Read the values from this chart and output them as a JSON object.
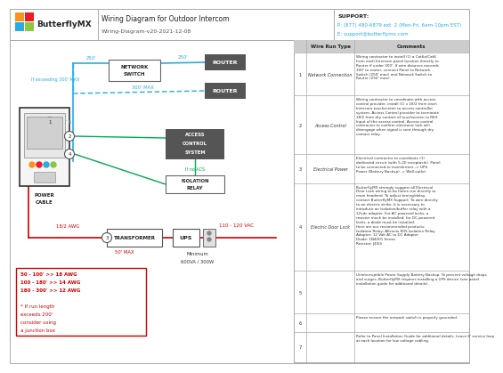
{
  "title": "Wiring Diagram for Outdoor Intercom",
  "subtitle": "Wiring-Diagram-v20-2021-12-08",
  "company": "ButterflyMX",
  "support_phone": "P: (877) 480-6879 ext. 2 (Mon-Fri, 6am-10pm EST)",
  "support_email": "E: support@butterflymx.com",
  "bg_color": "#ffffff",
  "cyan": "#29abe2",
  "green": "#00a651",
  "red": "#cc0000",
  "dark_box": "#555555",
  "wire_run_types": [
    "Network Connection",
    "Access Control",
    "Electrical Power",
    "Electric Door Lock",
    "",
    "",
    ""
  ],
  "comments": [
    "Wiring contractor to install (1) a Cat6a/Cat6\nfrom each Intercom panel location directly to\nRouter if under 300'. If wire distance exceeds\n300' to router, connect Panel to Network\nSwitch (250' max) and Network Switch to\nRouter (250' max).",
    "Wiring contractor to coordinate with access\ncontrol provider, install (1) x 18/2 from each\nIntercom touchscreen to access controller\nsystem. Access Control provider to terminate\n18/2 from dry contact of touchscreen to REX\nInput of the access control. Access control\ncontractor to confirm electronic lock will\ndisengage when signal is sent through dry\ncontact relay.",
    "Electrical contractor to coordinate (1)\ndedicated circuit (with 5-20 receptacle). Panel\nto be connected to transformer -> UPS\nPower (Battery Backup) -> Wall outlet",
    "ButterflyMX strongly suggest all Electrical\nDoor Lock wiring to be home-run directly to\nmain headend. To adjust timing/delay,\ncontact ButterflyMX Support. To wire directly\nto an electric strike, it is necessary to\nintroduce an isolation/buffer relay with a\n12vdc adapter. For AC-powered locks, a\nresistor much be installed; for DC-powered\nlocks, a diode must be installed.\nHere are our recommended products:\nIsolation Relay: Altronix R05 Isolation Relay\nAdapter: 12 Volt AC to DC Adapter\nDiode: 1N4001 Series\nResistor: J450i",
    "Uninterruptible Power Supply Battery Backup. To prevent voltage drops\nand surges, ButterflyMX requires installing a UPS device (see panel\ninstallation guide for additional details).",
    "Please ensure the network switch is properly grounded.",
    "Refer to Panel Installation Guide for additional details. Leave 6' service loop\nat each location for low voltage cabling."
  ],
  "logo_colors": [
    "#f7941d",
    "#ed1c24",
    "#29abe2",
    "#8dc63f"
  ],
  "awg_lines": [
    "50 - 100' >> 18 AWG",
    "100 - 180' >> 14 AWG",
    "180 - 300' >> 12 AWG",
    "",
    "* If run length",
    "exceeds 200'",
    "consider using",
    "a junction box"
  ]
}
